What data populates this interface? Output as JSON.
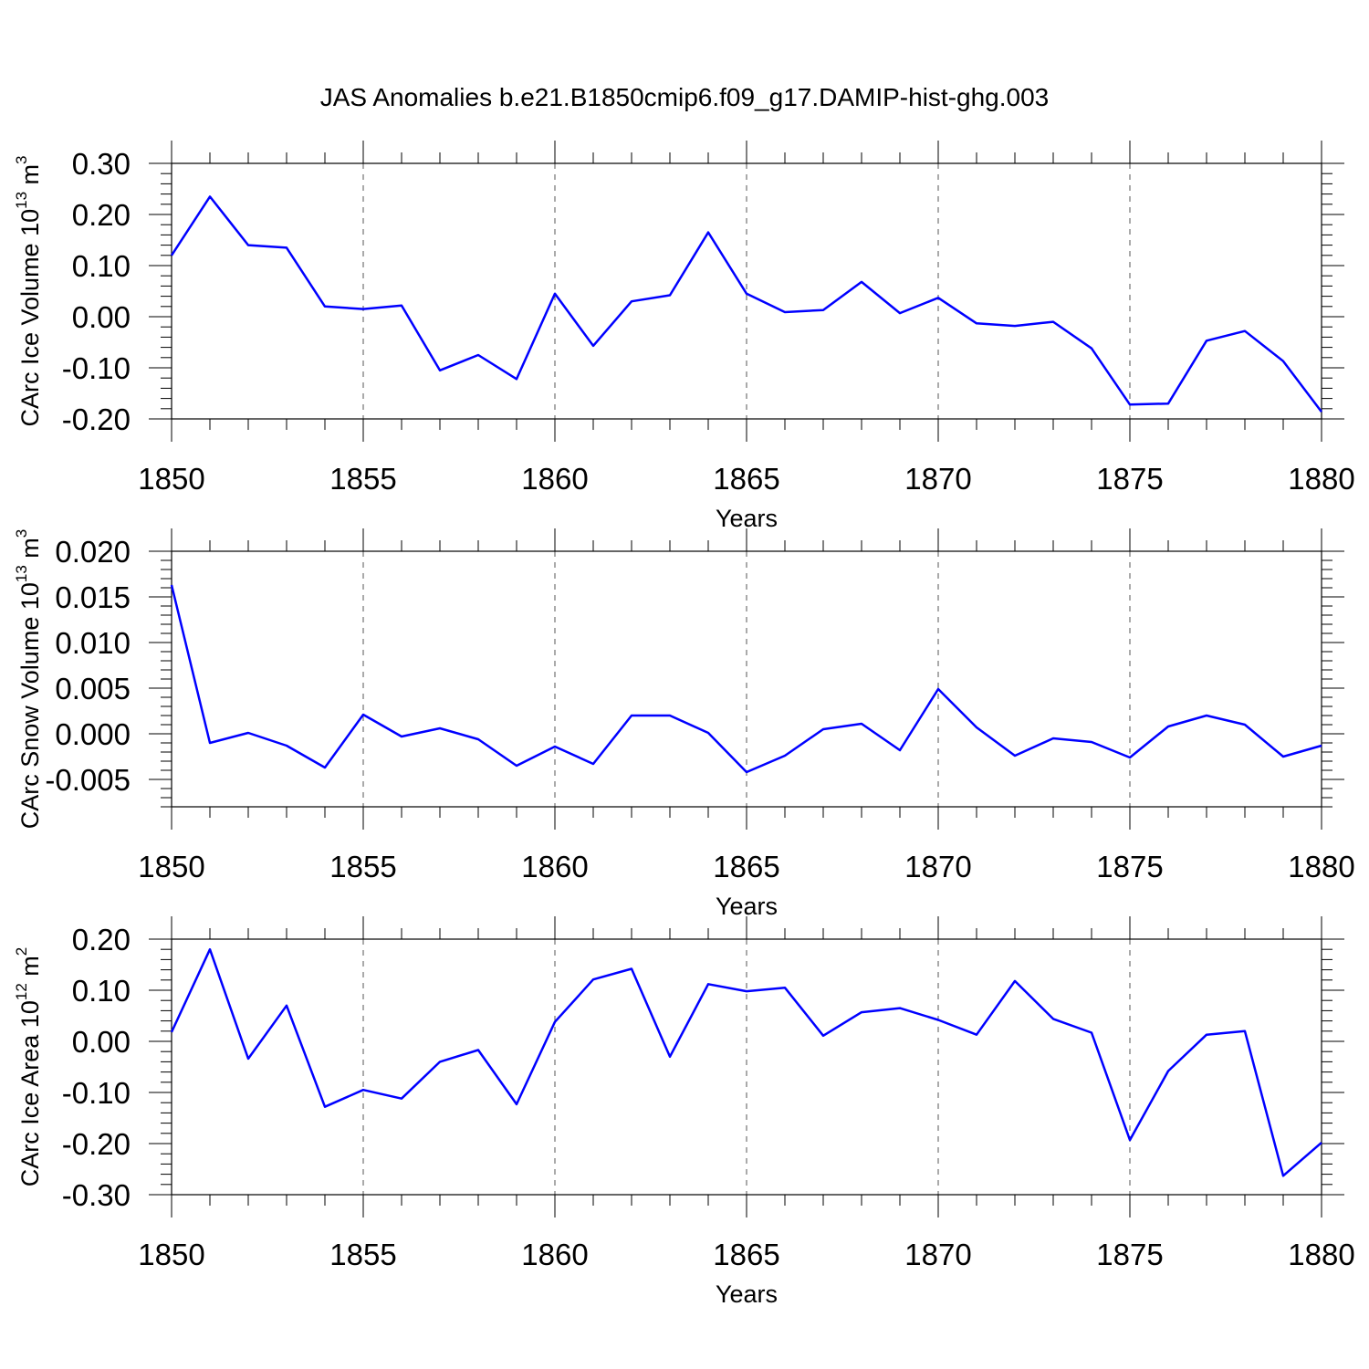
{
  "title": "JAS Anomalies b.e21.B1850cmip6.f09_g17.DAMIP-hist-ghg.003",
  "colors": {
    "line": "#0000ff",
    "axis": "#000000"
  },
  "chart_data": [
    {
      "type": "line",
      "ylabel_main": "CArc Ice Volume 10",
      "ylabel_exp": "13",
      "ylabel_unit": " m",
      "ylabel_unit_exp": "3",
      "xlabel": "Years",
      "xlim": [
        1850,
        1880
      ],
      "ylim": [
        -0.2,
        0.3
      ],
      "yticks": [
        -0.2,
        -0.1,
        0.0,
        0.1,
        0.2,
        0.3
      ],
      "ytick_labels": [
        "-0.20",
        "-0.10",
        "0.00",
        "0.10",
        "0.20",
        "0.30"
      ],
      "xticks": [
        1850,
        1855,
        1860,
        1865,
        1870,
        1875,
        1880
      ],
      "xtick_labels": [
        "1850",
        "1855",
        "1860",
        "1865",
        "1870",
        "1875",
        "1880"
      ],
      "x": [
        1850,
        1851,
        1852,
        1853,
        1854,
        1855,
        1856,
        1857,
        1858,
        1859,
        1860,
        1861,
        1862,
        1863,
        1864,
        1865,
        1866,
        1867,
        1868,
        1869,
        1870,
        1871,
        1872,
        1873,
        1874,
        1875,
        1876,
        1877,
        1878,
        1879,
        1880
      ],
      "y": [
        0.12,
        0.235,
        0.14,
        0.135,
        0.02,
        0.015,
        0.022,
        -0.105,
        -0.075,
        -0.122,
        0.045,
        -0.057,
        0.03,
        0.042,
        0.165,
        0.045,
        0.009,
        0.013,
        0.068,
        0.007,
        0.037,
        -0.013,
        -0.018,
        -0.01,
        -0.062,
        -0.172,
        -0.17,
        -0.047,
        -0.028,
        -0.087,
        -0.186
      ]
    },
    {
      "type": "line",
      "ylabel_main": "CArc Snow Volume 10",
      "ylabel_exp": "13",
      "ylabel_unit": " m",
      "ylabel_unit_exp": "3",
      "xlabel": "Years",
      "xlim": [
        1850,
        1880
      ],
      "ylim": [
        -0.008,
        0.02
      ],
      "yticks": [
        -0.005,
        0.0,
        0.005,
        0.01,
        0.015,
        0.02
      ],
      "ytick_labels": [
        "-0.005",
        "0.000",
        "0.005",
        "0.010",
        "0.015",
        "0.020"
      ],
      "xticks": [
        1850,
        1855,
        1860,
        1865,
        1870,
        1875,
        1880
      ],
      "xtick_labels": [
        "1850",
        "1855",
        "1860",
        "1865",
        "1870",
        "1875",
        "1880"
      ],
      "x": [
        1850,
        1851,
        1852,
        1853,
        1854,
        1855,
        1856,
        1857,
        1858,
        1859,
        1860,
        1861,
        1862,
        1863,
        1864,
        1865,
        1866,
        1867,
        1868,
        1869,
        1870,
        1871,
        1872,
        1873,
        1874,
        1875,
        1876,
        1877,
        1878,
        1879,
        1880
      ],
      "y": [
        0.0163,
        -0.001,
        0.0001,
        -0.0013,
        -0.0037,
        0.0021,
        -0.0003,
        0.0006,
        -0.0006,
        -0.0035,
        -0.0014,
        -0.0033,
        0.002,
        0.002,
        0.0001,
        -0.0042,
        -0.0024,
        0.0005,
        0.0011,
        -0.0018,
        0.0049,
        0.0007,
        -0.0024,
        -0.0005,
        -0.0009,
        -0.0026,
        0.0008,
        0.002,
        0.001,
        -0.0025,
        -0.0013
      ]
    },
    {
      "type": "line",
      "ylabel_main": "CArc Ice Area 10",
      "ylabel_exp": "12",
      "ylabel_unit": " m",
      "ylabel_unit_exp": "2",
      "xlabel": "Years",
      "xlim": [
        1850,
        1880
      ],
      "ylim": [
        -0.3,
        0.2
      ],
      "yticks": [
        -0.3,
        -0.2,
        -0.1,
        0.0,
        0.1,
        0.2
      ],
      "ytick_labels": [
        "-0.30",
        "-0.20",
        "-0.10",
        "0.00",
        "0.10",
        "0.20"
      ],
      "xticks": [
        1850,
        1855,
        1860,
        1865,
        1870,
        1875,
        1880
      ],
      "xtick_labels": [
        "1850",
        "1855",
        "1860",
        "1865",
        "1870",
        "1875",
        "1880"
      ],
      "x": [
        1850,
        1851,
        1852,
        1853,
        1854,
        1855,
        1856,
        1857,
        1858,
        1859,
        1860,
        1861,
        1862,
        1863,
        1864,
        1865,
        1866,
        1867,
        1868,
        1869,
        1870,
        1871,
        1872,
        1873,
        1874,
        1875,
        1876,
        1877,
        1878,
        1879,
        1880
      ],
      "y": [
        0.018,
        0.18,
        -0.034,
        0.07,
        -0.128,
        -0.095,
        -0.112,
        -0.04,
        -0.017,
        -0.123,
        0.038,
        0.121,
        0.142,
        -0.03,
        0.112,
        0.098,
        0.105,
        0.011,
        0.057,
        0.065,
        0.042,
        0.013,
        0.118,
        0.044,
        0.017,
        -0.193,
        -0.058,
        0.013,
        0.02,
        -0.263,
        -0.198
      ]
    }
  ]
}
